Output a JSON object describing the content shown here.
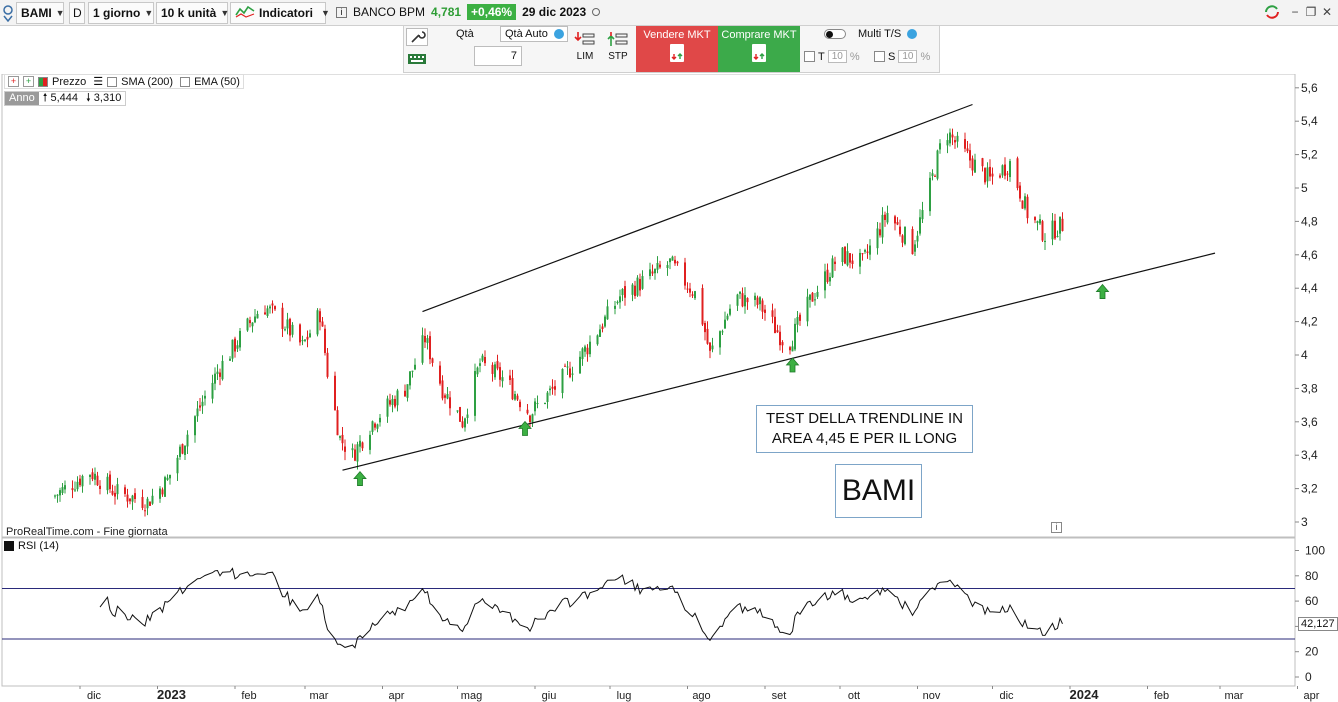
{
  "toolbar": {
    "symbol": "BAMI",
    "period_code": "D",
    "timeframe": "1 giorno",
    "units": "10 k unità",
    "indicators_label": "Indicatori",
    "instrument": "BANCO BPM",
    "last_price": "4,781",
    "change_pct": "+0,46%",
    "date": "29 dic 2023"
  },
  "order_panel": {
    "qty_label": "Qtà",
    "qty_auto_label": "Qtà Auto",
    "qty_value": "7",
    "lim_label": "LIM",
    "stp_label": "STP",
    "sell_label": "Vendere MKT",
    "buy_label": "Comprare MKT",
    "multi_label": "Multi T/S",
    "t_label": "T",
    "t_value": "10",
    "s_label": "S",
    "s_value": "10",
    "pct": "%"
  },
  "legend": {
    "price_label": "Prezzo",
    "sma_label": "SMA (200)",
    "ema_label": "EMA (50)",
    "year_label": "Anno",
    "year_high": "5,444",
    "year_low": "3,310"
  },
  "annotations": {
    "note_line1": "TEST DELLA TRENDLINE IN",
    "note_line2": "AREA 4,45 E PER IL LONG",
    "ticker_big": "BAMI"
  },
  "footer": {
    "source": "ProRealTime.com - Fine giornata"
  },
  "rsi": {
    "label": "RSI (14)",
    "last_value": "42,127",
    "upper_line": 70,
    "lower_line": 30
  },
  "colors": {
    "up": "#2ea043",
    "down": "#e02020",
    "sell": "#e04848",
    "buy": "#3caa4a",
    "rsi_band": "#2a2a7a"
  },
  "chart_data": {
    "type": "candlestick",
    "instrument": "BAMI",
    "price_axis": {
      "ticks": [
        3,
        3.2,
        3.4,
        3.6,
        3.8,
        4,
        4.2,
        4.4,
        4.6,
        4.8,
        5,
        5.2,
        5.4,
        5.6
      ],
      "tick_labels": [
        "3",
        "3,2",
        "3,4",
        "3,6",
        "3,8",
        "4",
        "4,2",
        "4,4",
        "4,6",
        "4,8",
        "5",
        "5,2",
        "5,4",
        "5,6"
      ]
    },
    "rsi_axis": {
      "ticks": [
        0,
        20,
        40,
        60,
        80,
        100
      ]
    },
    "time_labels": [
      "dic",
      "2023",
      "feb",
      "mar",
      "apr",
      "mag",
      "giu",
      "lug",
      "ago",
      "set",
      "ott",
      "nov",
      "dic",
      "2024",
      "feb",
      "mar",
      "apr"
    ],
    "close_path": [
      [
        "2022-11-20",
        3.15
      ],
      [
        "2022-12-05",
        3.3
      ],
      [
        "2022-12-15",
        3.18
      ],
      [
        "2022-12-28",
        3.12
      ],
      [
        "2023-01-05",
        3.25
      ],
      [
        "2023-01-15",
        3.6
      ],
      [
        "2023-01-25",
        3.9
      ],
      [
        "2023-02-05",
        4.15
      ],
      [
        "2023-02-12",
        4.3
      ],
      [
        "2023-02-20",
        4.2
      ],
      [
        "2023-02-28",
        4.05
      ],
      [
        "2023-03-07",
        4.25
      ],
      [
        "2023-03-10",
        3.9
      ],
      [
        "2023-03-15",
        3.5
      ],
      [
        "2023-03-20",
        3.4
      ],
      [
        "2023-03-28",
        3.6
      ],
      [
        "2023-04-10",
        3.8
      ],
      [
        "2023-04-18",
        4.1
      ],
      [
        "2023-04-25",
        3.8
      ],
      [
        "2023-05-03",
        3.6
      ],
      [
        "2023-05-10",
        3.95
      ],
      [
        "2023-05-20",
        3.85
      ],
      [
        "2023-05-30",
        3.65
      ],
      [
        "2023-06-10",
        3.82
      ],
      [
        "2023-06-22",
        4.05
      ],
      [
        "2023-07-05",
        4.35
      ],
      [
        "2023-07-15",
        4.45
      ],
      [
        "2023-07-25",
        4.55
      ],
      [
        "2023-08-05",
        4.35
      ],
      [
        "2023-08-10",
        4.0
      ],
      [
        "2023-08-20",
        4.35
      ],
      [
        "2023-08-30",
        4.3
      ],
      [
        "2023-09-10",
        4.05
      ],
      [
        "2023-09-20",
        4.35
      ],
      [
        "2023-10-01",
        4.6
      ],
      [
        "2023-10-10",
        4.55
      ],
      [
        "2023-10-20",
        4.85
      ],
      [
        "2023-10-30",
        4.65
      ],
      [
        "2023-11-05",
        4.95
      ],
      [
        "2023-11-12",
        5.35
      ],
      [
        "2023-11-20",
        5.2
      ],
      [
        "2023-11-30",
        5.05
      ],
      [
        "2023-12-08",
        5.15
      ],
      [
        "2023-12-15",
        4.85
      ],
      [
        "2023-12-22",
        4.72
      ],
      [
        "2023-12-29",
        4.781
      ]
    ],
    "trendlines": [
      {
        "name": "upper",
        "from": [
          "2023-04-17",
          4.26
        ],
        "to": [
          "2023-11-23",
          5.5
        ]
      },
      {
        "name": "lower",
        "from": [
          "2023-03-16",
          3.31
        ],
        "to": [
          "2024-02-28",
          4.61
        ]
      }
    ],
    "arrows": [
      [
        "2023-03-23",
        3.26
      ],
      [
        "2023-05-28",
        3.56
      ],
      [
        "2023-09-12",
        3.94
      ],
      [
        "2024-01-14",
        4.38
      ]
    ]
  }
}
